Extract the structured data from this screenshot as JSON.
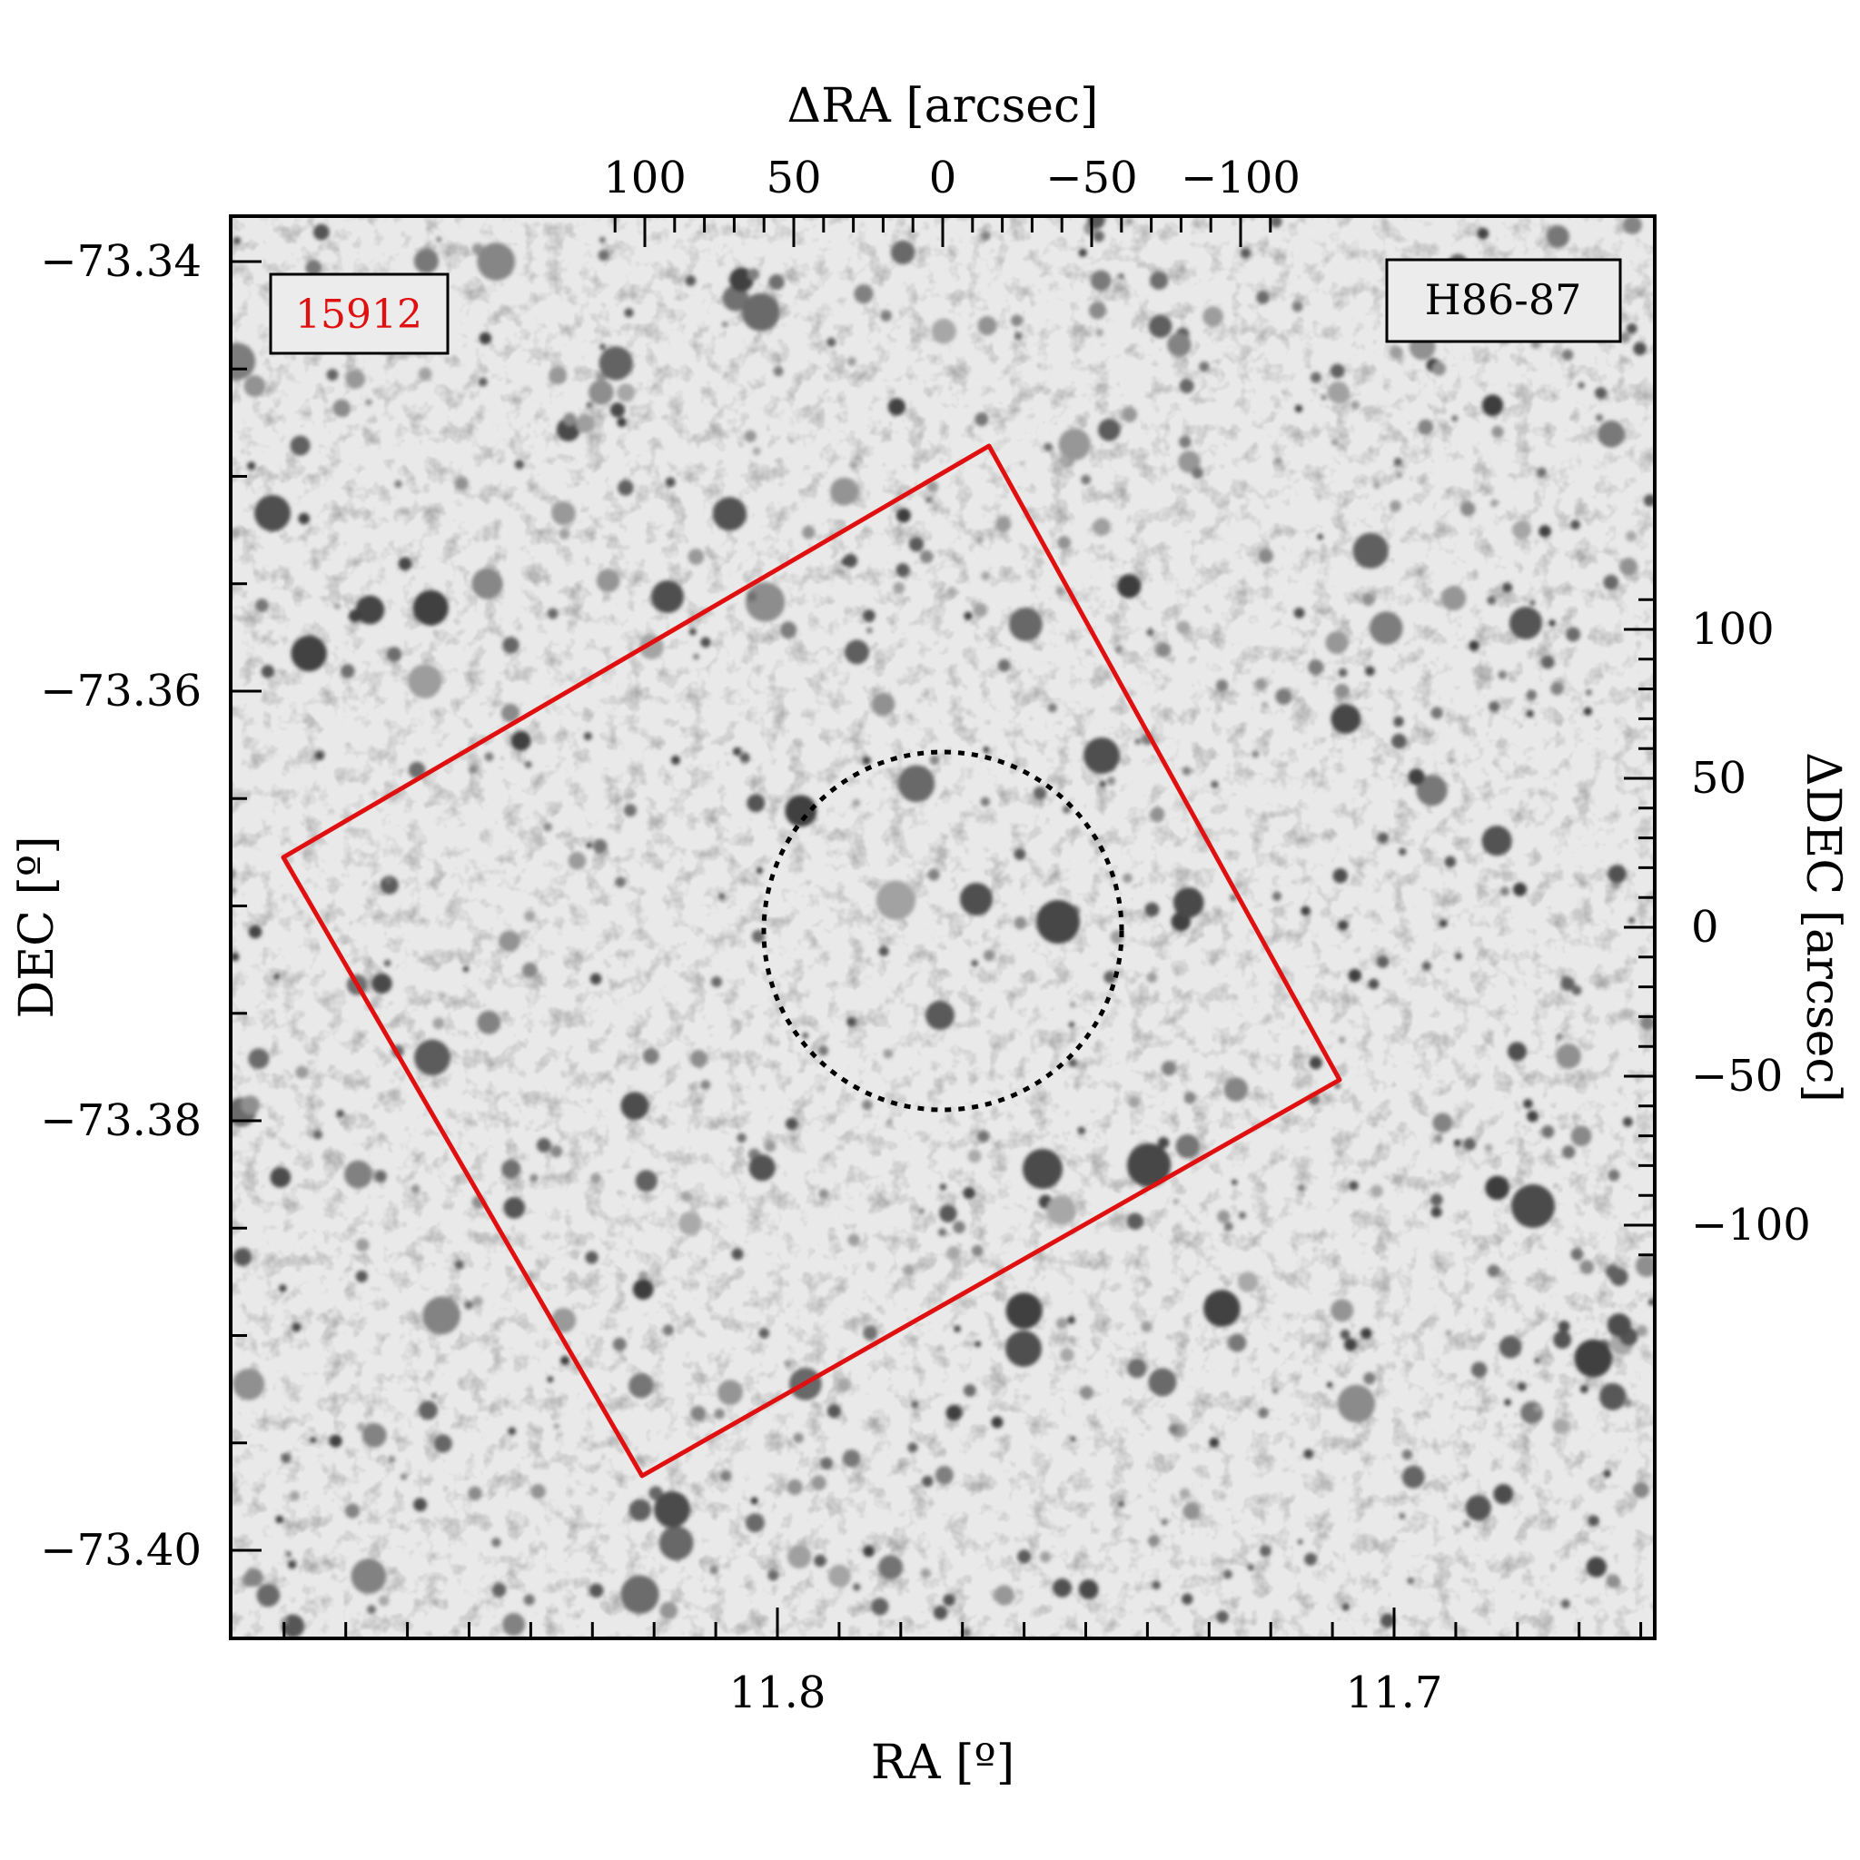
{
  "labels": {
    "top_axis_title": "ΔRA [arcsec]",
    "bottom_axis_title": "RA [º]",
    "left_axis_title": "DEC [º]",
    "right_axis_title": "ΔDEC [arcsec]",
    "id_badge": "15912",
    "cluster_badge": "H86-87"
  },
  "axes": {
    "top_ticks": [
      {
        "value": 100,
        "label": "100"
      },
      {
        "value": 50,
        "label": "50"
      },
      {
        "value": 0,
        "label": "0"
      },
      {
        "value": -50,
        "label": "−50"
      },
      {
        "value": -100,
        "label": "−100"
      }
    ],
    "right_ticks": [
      {
        "value": 100,
        "label": "100"
      },
      {
        "value": 50,
        "label": "50"
      },
      {
        "value": 0,
        "label": "0"
      },
      {
        "value": -50,
        "label": "−50"
      },
      {
        "value": -100,
        "label": "−100"
      }
    ],
    "left_ticks": [
      {
        "value": -73.34,
        "label": "−73.34"
      },
      {
        "value": -73.36,
        "label": "−73.36"
      },
      {
        "value": -73.38,
        "label": "−73.38"
      },
      {
        "value": -73.4,
        "label": "−73.40"
      }
    ],
    "bottom_ticks": [
      {
        "value": 11.8,
        "label": "11.8"
      },
      {
        "value": 11.7,
        "label": "11.7"
      }
    ]
  },
  "overlays": {
    "footprint_color": "#e01010",
    "circle_color": "#000000",
    "badge_id_color": "#e01010"
  }
}
